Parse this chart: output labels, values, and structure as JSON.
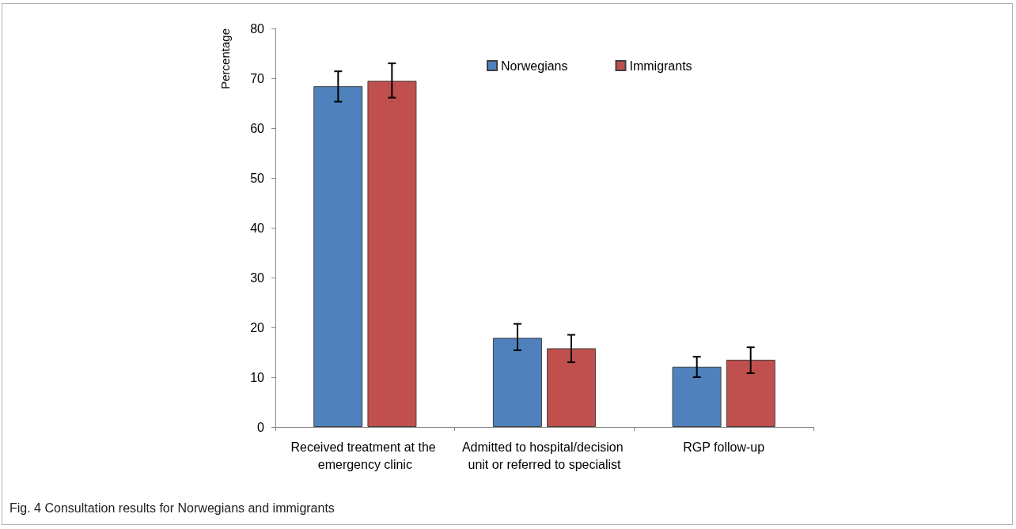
{
  "chart_data": {
    "type": "bar",
    "categories": [
      "Received treatment at the emergency clinic",
      "Admitted to hospital/decision unit or referred to specialist",
      "RGP follow-up"
    ],
    "series": [
      {
        "name": "Norwegians",
        "color": "#4f81bd",
        "values": [
          68.4,
          17.9,
          12.1
        ],
        "errors": [
          [
            65.3,
            71.4
          ],
          [
            15.4,
            20.7
          ],
          [
            10.0,
            14.1
          ]
        ]
      },
      {
        "name": "Immigrants",
        "color": "#c0504d",
        "values": [
          69.5,
          15.8,
          13.5
        ],
        "errors": [
          [
            66.1,
            73.0
          ],
          [
            13.0,
            18.5
          ],
          [
            10.8,
            16.0
          ]
        ]
      }
    ],
    "ylabel": "Percentage",
    "ylim": [
      0,
      80
    ],
    "yticks": [
      0,
      10,
      20,
      30,
      40,
      50,
      60,
      70,
      80
    ],
    "grid": false,
    "legend": "top",
    "annotations": [
      "Fig. 4 Consultation results for Norwegians and immigrants"
    ]
  }
}
